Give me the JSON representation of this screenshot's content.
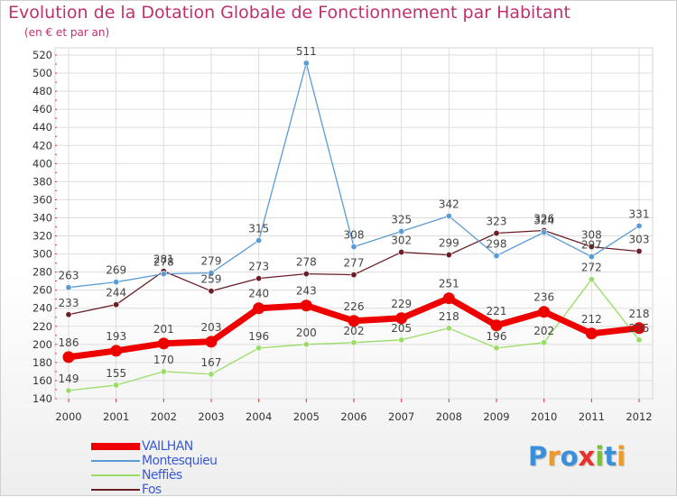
{
  "title": "Evolution de la Dotation Globale de Fonctionnement par Habitant",
  "subtitle": "(en € et par an)",
  "chart_data": {
    "type": "line",
    "x": [
      "2000",
      "2001",
      "2002",
      "2003",
      "2004",
      "2005",
      "2006",
      "2007",
      "2008",
      "2009",
      "2010",
      "2011",
      "2012"
    ],
    "ylim": [
      140,
      520
    ],
    "yticks": [
      140,
      160,
      180,
      200,
      220,
      240,
      260,
      280,
      300,
      320,
      340,
      360,
      380,
      400,
      420,
      440,
      460,
      480,
      500,
      520
    ],
    "grid": true,
    "legend_position": "bottom-left",
    "series": [
      {
        "name": "VAILHAN",
        "color": "#ee0000",
        "values": [
          186,
          193,
          201,
          203,
          240,
          243,
          226,
          229,
          251,
          221,
          236,
          212,
          218
        ]
      },
      {
        "name": "Montesquieu",
        "color": "#5b9bd5",
        "values": [
          263,
          269,
          278,
          279,
          315,
          511,
          308,
          325,
          342,
          298,
          324,
          297,
          331
        ]
      },
      {
        "name": "Neffiès",
        "color": "#99dd66",
        "values": [
          149,
          155,
          170,
          167,
          196,
          200,
          202,
          205,
          218,
          196,
          202,
          272,
          205
        ]
      },
      {
        "name": "Fos",
        "color": "#6b1e26",
        "values": [
          233,
          244,
          281,
          259,
          273,
          278,
          277,
          302,
          299,
          323,
          326,
          308,
          303
        ]
      }
    ]
  },
  "logo": {
    "text": "Proxiti",
    "colors": [
      "#3a8fd9",
      "#f29a1f",
      "#3a8fd9",
      "#e8332a",
      "#7bbf3a",
      "#3a8fd9",
      "#f29a1f"
    ]
  }
}
